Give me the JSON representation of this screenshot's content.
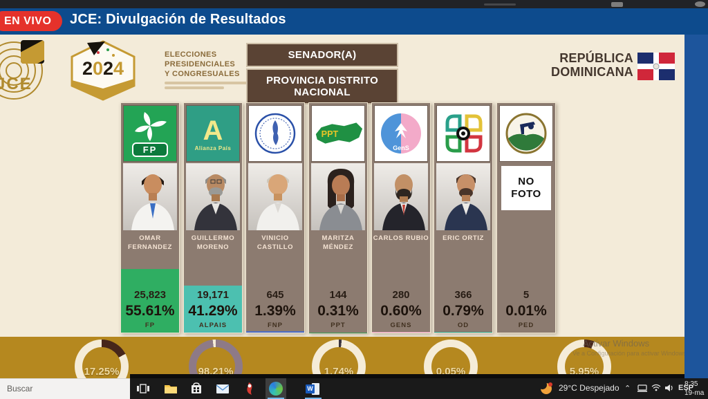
{
  "stream": {
    "live_badge": "EN VIVO",
    "title": "JCE: Divulgación de Resultados"
  },
  "header": {
    "org": "JCE",
    "year": "2024",
    "event_line1": "ELECCIONES",
    "event_line2": "PRESIDENCIALES",
    "event_line3": "Y CONGRESUALES",
    "office": "SENADOR(A)",
    "region": "PROVINCIA DISTRITO NACIONAL",
    "country_line1": "REPÚBLICA",
    "country_line2": "DOMINICANA"
  },
  "results": {
    "no_photo_line1": "NO",
    "no_photo_line2": "FOTO",
    "candidates": [
      {
        "name_line1": "OMAR",
        "name_line2": "FERNANDEZ",
        "party": "FP",
        "votes": "25,823",
        "pct_label": "55.61%",
        "pct": 55.61,
        "fill": "#2fae62",
        "logo_text": "FP"
      },
      {
        "name_line1": "GUILLERMO",
        "name_line2": "MORENO",
        "party": "ALPAIS",
        "votes": "19,171",
        "pct_label": "41.29%",
        "pct": 41.29,
        "fill": "#4cc0b0",
        "logo_letter": "A",
        "logo_caption": "Alianza País"
      },
      {
        "name_line1": "VINICIO CASTILLO",
        "name_line2": "",
        "party": "FNP",
        "votes": "645",
        "pct_label": "1.39%",
        "pct": 1.39,
        "fill": "#4a6cc8"
      },
      {
        "name_line1": "MARITZA",
        "name_line2": "MÉNDEZ",
        "party": "PPT",
        "votes": "144",
        "pct_label": "0.31%",
        "pct": 0.31,
        "fill": "#3fa05a",
        "logo_text": "PPT"
      },
      {
        "name_line1": "CARLOS RUBIO",
        "name_line2": "",
        "party": "GENS",
        "votes": "280",
        "pct_label": "0.60%",
        "pct": 0.6,
        "fill": "#ef9ec4",
        "logo_caption": "GenS"
      },
      {
        "name_line1": "ERIC ORTIZ",
        "name_line2": "",
        "party": "OD",
        "votes": "366",
        "pct_label": "0.79%",
        "pct": 0.79,
        "fill": "#2aa08a"
      },
      {
        "name_line1": "",
        "name_line2": "",
        "party": "PED",
        "votes": "5",
        "pct_label": "0.01%",
        "pct": 0.01,
        "fill": "#2f7a3a"
      }
    ]
  },
  "gauges": [
    {
      "label": "17.25%",
      "value": 17.25,
      "color": "#47261a"
    },
    {
      "label": "98.21%",
      "value": 98.21,
      "color": "#8e7a87"
    },
    {
      "label": "1.74%",
      "value": 1.74,
      "color": "#3a3440"
    },
    {
      "label": "0.05%",
      "value": 0.05,
      "color": "#47261a"
    },
    {
      "label": "5.95%",
      "value": 5.95,
      "color": "#47261a"
    }
  ],
  "watermark": {
    "line1": "Activar Windows",
    "line2": "Ve a Configuración para activar Windows."
  },
  "taskbar": {
    "search": "Buscar",
    "weather": "29°C Despejado",
    "lang": "ESP",
    "time": "8:35",
    "date": "19-ma"
  },
  "colors": {
    "stream_blue": "#0d4b8d",
    "live_red": "#e5322b",
    "panel_cream": "#f3ebd9",
    "column_brown": "#8c7b70",
    "title_brown": "#5a4334",
    "gold_band": "#b5881f"
  }
}
